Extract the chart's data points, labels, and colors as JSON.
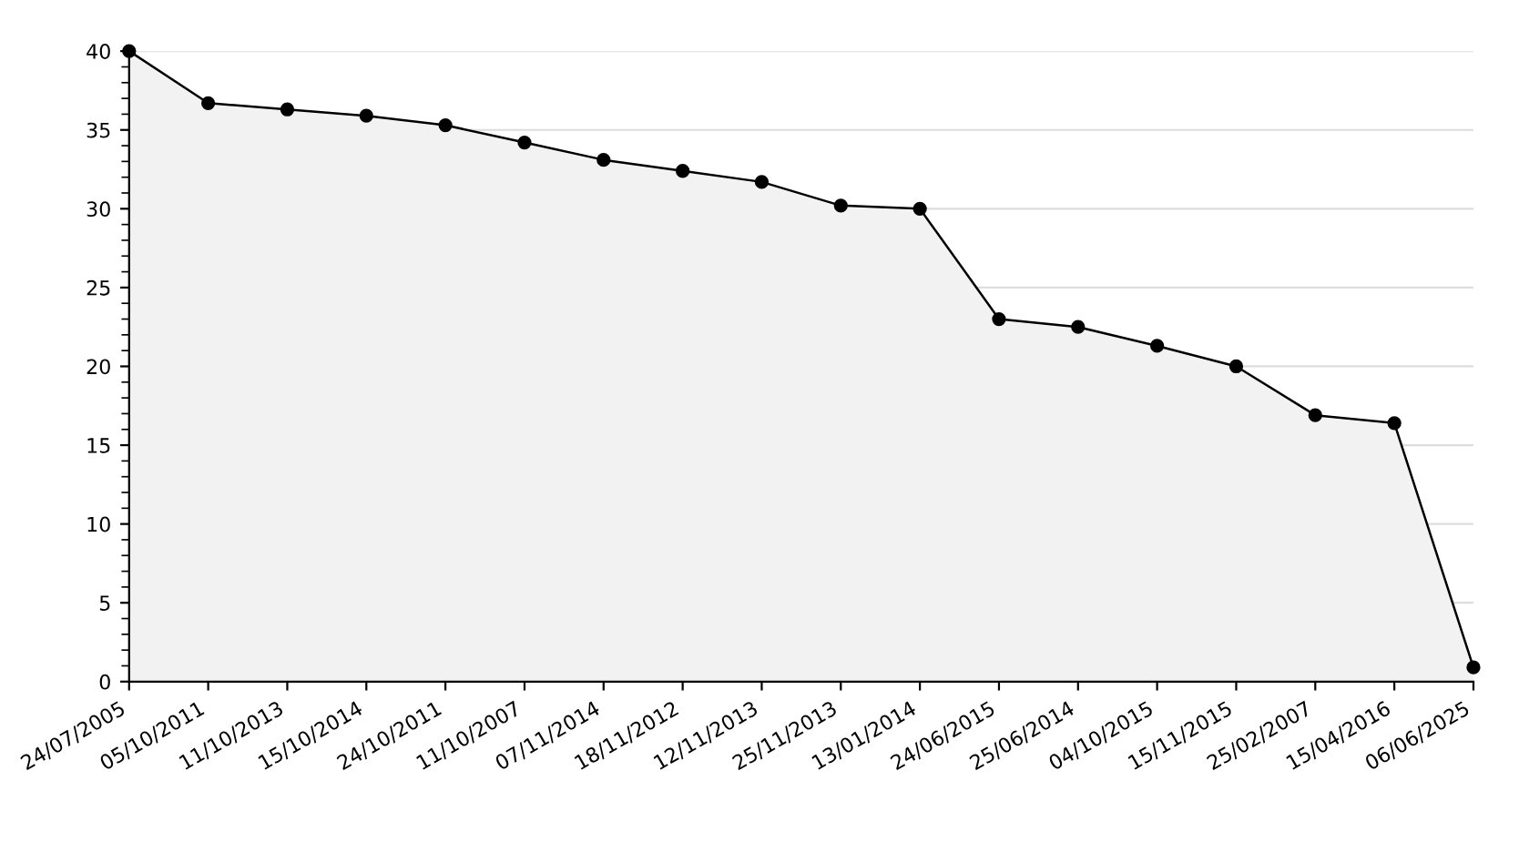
{
  "chart_data": {
    "type": "area",
    "categories": [
      "24/07/2005",
      "05/10/2011",
      "11/10/2013",
      "15/10/2014",
      "24/10/2011",
      "11/10/2007",
      "07/11/2014",
      "18/11/2012",
      "12/11/2013",
      "25/11/2013",
      "13/01/2014",
      "24/06/2015",
      "25/06/2014",
      "04/10/2015",
      "15/11/2015",
      "25/02/2007",
      "15/04/2016",
      "06/06/2025"
    ],
    "series": [
      {
        "color": "#000000",
        "values": [
          40,
          36.7,
          36.3,
          35.9,
          35.3,
          34.2,
          33.1,
          32.4,
          31.7,
          30.2,
          30.0,
          23.0,
          22.5,
          21.3,
          20.0,
          16.9,
          16.4,
          0.9
        ]
      }
    ],
    "ylim": [
      0,
      40
    ],
    "yticks": [
      0,
      5,
      10,
      15,
      20,
      25,
      30,
      35,
      40
    ],
    "grid": "y",
    "marker": "circle",
    "line_style": "solid"
  }
}
